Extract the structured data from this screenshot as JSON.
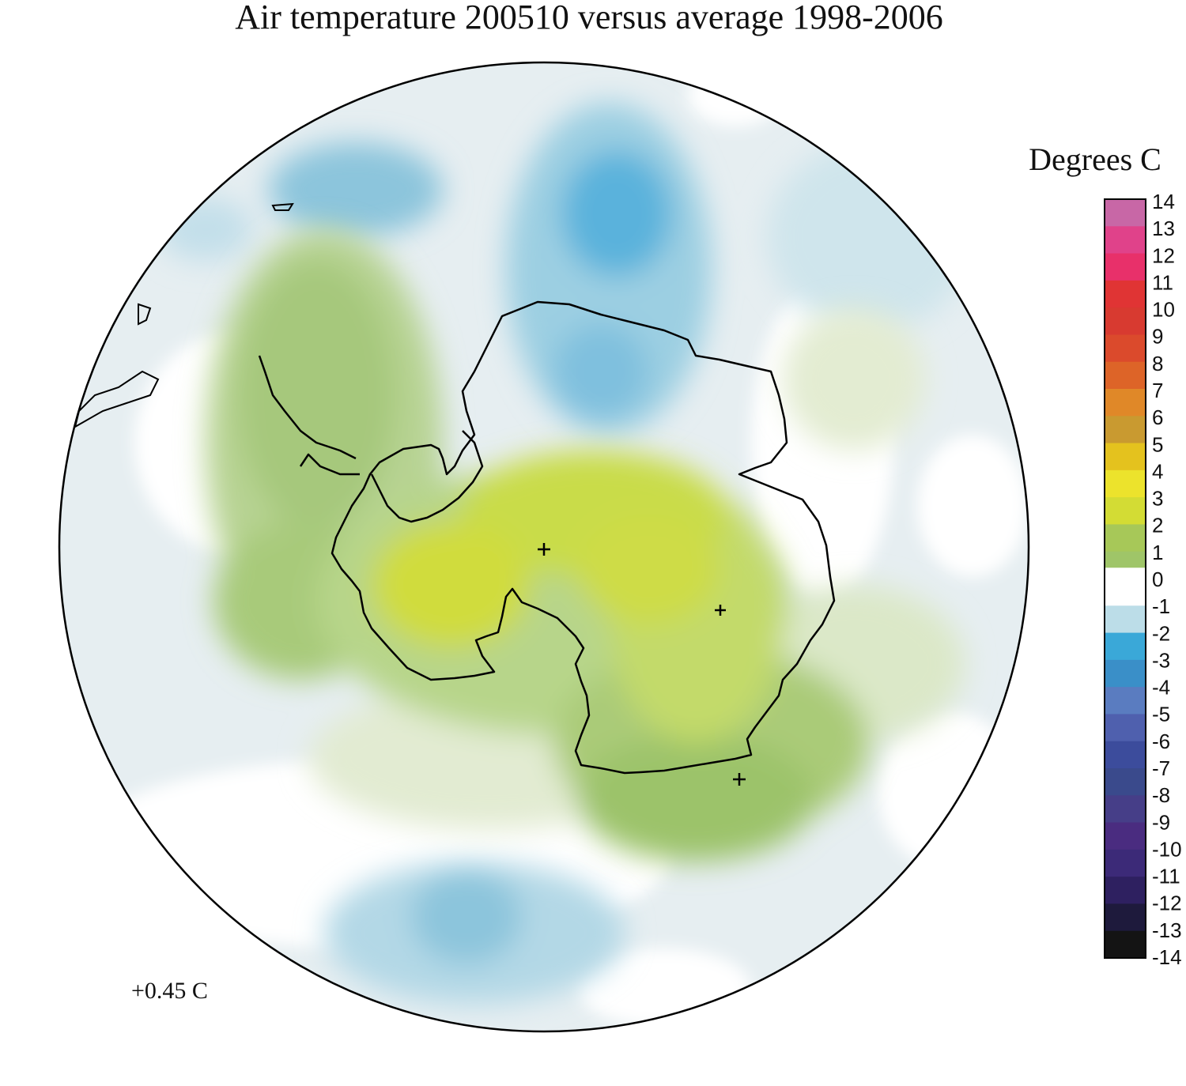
{
  "title": "Air temperature 200510 versus average 1998-2006",
  "legend": {
    "title": "Degrees C",
    "ticks": [
      "14",
      "13",
      "12",
      "11",
      "10",
      "9",
      "8",
      "7",
      "6",
      "5",
      "4",
      "3",
      "2",
      "1",
      "0",
      "-1",
      "-2",
      "-3",
      "-4",
      "-5",
      "-6",
      "-7",
      "-8",
      "-9",
      "-10",
      "-11",
      "-12",
      "-13",
      "-14"
    ],
    "colors": [
      "#c867a6",
      "#e0428a",
      "#e8306a",
      "#e03434",
      "#d83a30",
      "#db4a2c",
      "#dd6428",
      "#e08828",
      "#c99a30",
      "#e4c21e",
      "#ece32c",
      "#d3dc34",
      "#a7c858",
      "#9fc568",
      "#ffffff",
      "#bcdde8",
      "#3aa8d8",
      "#3a8fc8",
      "#5a7cc0",
      "#4f60ae",
      "#3c4c9c",
      "#3a4a8c",
      "#463e88",
      "#4a2c80",
      "#3c2a78",
      "#2e2060",
      "#1e1a3c",
      "#141414",
      "#141414"
    ]
  },
  "mean_anomaly_label": "+0.45 C",
  "map": {
    "projection": "south polar stereographic",
    "field": "air temperature anomaly"
  }
}
